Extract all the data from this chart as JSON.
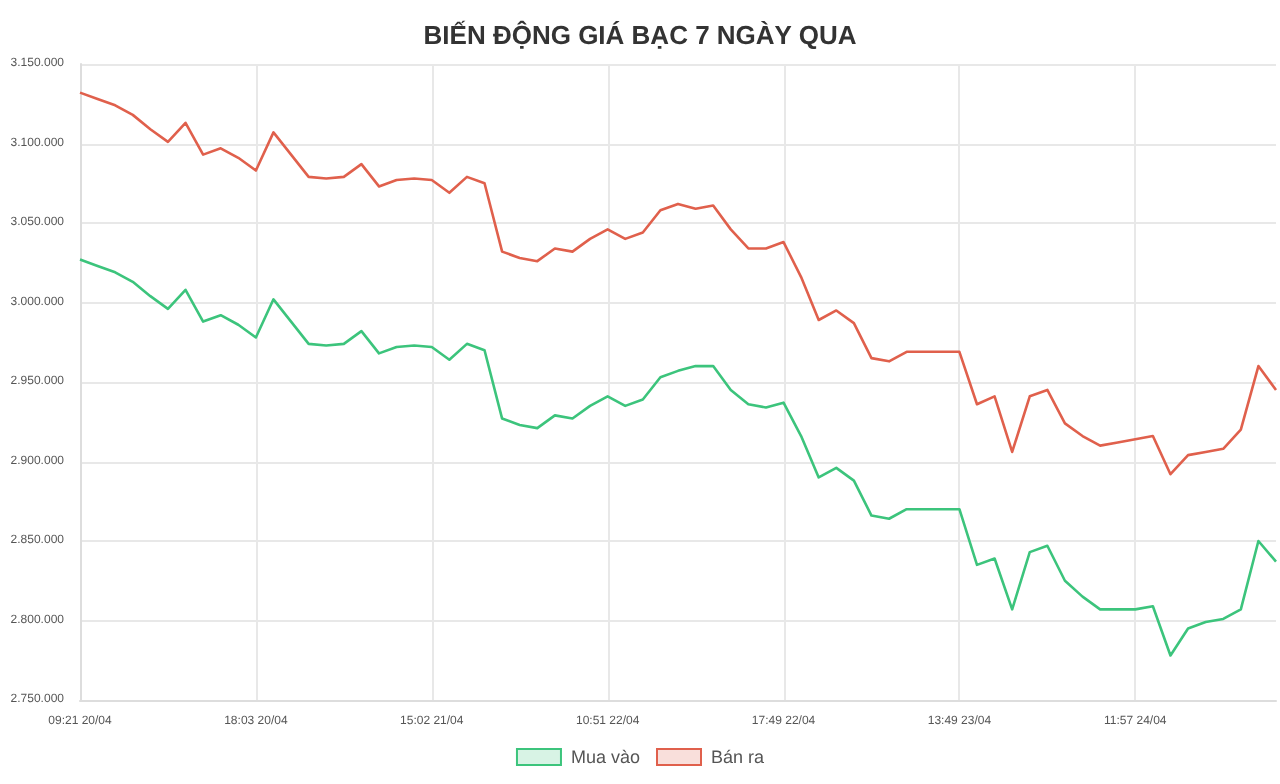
{
  "chart_data": {
    "type": "line",
    "title": "BIẾN ĐỘNG GIÁ BẠC 7 NGÀY QUA",
    "categories": [
      "09:21 20/04",
      null,
      null,
      null,
      null,
      null,
      null,
      null,
      null,
      null,
      "18:03 20/04",
      null,
      null,
      null,
      null,
      null,
      null,
      null,
      null,
      null,
      "15:02 21/04",
      null,
      null,
      null,
      null,
      null,
      null,
      null,
      null,
      null,
      "10:51 22/04",
      null,
      null,
      null,
      null,
      null,
      null,
      null,
      null,
      null,
      "17:49 22/04",
      null,
      null,
      null,
      null,
      null,
      null,
      null,
      null,
      null,
      "13:49 23/04",
      null,
      null,
      null,
      null,
      null,
      null,
      null,
      null,
      null,
      "11:57 24/04",
      null,
      null,
      null,
      null,
      null,
      null,
      null,
      null
    ],
    "series": [
      {
        "name": "Mua vào",
        "color": "#3cc47c",
        "values": [
          3027000,
          3023000,
          3019000,
          3013000,
          3004000,
          2996000,
          3008000,
          2988000,
          2992000,
          2986000,
          2978000,
          3002000,
          2988000,
          2974000,
          2973000,
          2974000,
          2982000,
          2968000,
          2972000,
          2973000,
          2972000,
          2964000,
          2974000,
          2970000,
          2927000,
          2923000,
          2921000,
          2929000,
          2927000,
          2935000,
          2941000,
          2935000,
          2939000,
          2953000,
          2957000,
          2960000,
          2960000,
          2945000,
          2936000,
          2934000,
          2937000,
          2916000,
          2890000,
          2896000,
          2888000,
          2866000,
          2864000,
          2870000,
          2870000,
          2870000,
          2870000,
          2835000,
          2839000,
          2807000,
          2843000,
          2847000,
          2825000,
          2815000,
          2807000,
          2807000,
          2807000,
          2809000,
          2778000,
          2795000,
          2799000,
          2801000,
          2807000,
          2850000,
          2837000
        ]
      },
      {
        "name": "Bán ra",
        "color": "#e0604c",
        "values": [
          3132000,
          3128000,
          3124000,
          3118000,
          3109000,
          3101000,
          3113000,
          3093000,
          3097000,
          3091000,
          3083000,
          3107000,
          3093000,
          3079000,
          3078000,
          3079000,
          3087000,
          3073000,
          3077000,
          3078000,
          3077000,
          3069000,
          3079000,
          3075000,
          3032000,
          3028000,
          3026000,
          3034000,
          3032000,
          3040000,
          3046000,
          3040000,
          3044000,
          3058000,
          3062000,
          3059000,
          3061000,
          3046000,
          3034000,
          3034000,
          3038000,
          3016000,
          2989000,
          2995000,
          2987000,
          2965000,
          2963000,
          2969000,
          2969000,
          2969000,
          2969000,
          2936000,
          2941000,
          2906000,
          2941000,
          2945000,
          2924000,
          2916000,
          2910000,
          2912000,
          2914000,
          2916000,
          2892000,
          2904000,
          2906000,
          2908000,
          2920000,
          2960000,
          2945000
        ]
      }
    ],
    "ylim": [
      2750000,
      3150000
    ],
    "yticks": [
      {
        "value": 2750000,
        "label": "2.750.000"
      },
      {
        "value": 2800000,
        "label": "2.800.000"
      },
      {
        "value": 2850000,
        "label": "2.850.000"
      },
      {
        "value": 2900000,
        "label": "2.900.000"
      },
      {
        "value": 2950000,
        "label": "2.950.000"
      },
      {
        "value": 3000000,
        "label": "3.000.000"
      },
      {
        "value": 3050000,
        "label": "3.050.000"
      },
      {
        "value": 3100000,
        "label": "3.100.000"
      },
      {
        "value": 3150000,
        "label": "3.150.000"
      }
    ],
    "grid": true,
    "legend": "bottom",
    "marker": "none",
    "line_style": "solid"
  }
}
